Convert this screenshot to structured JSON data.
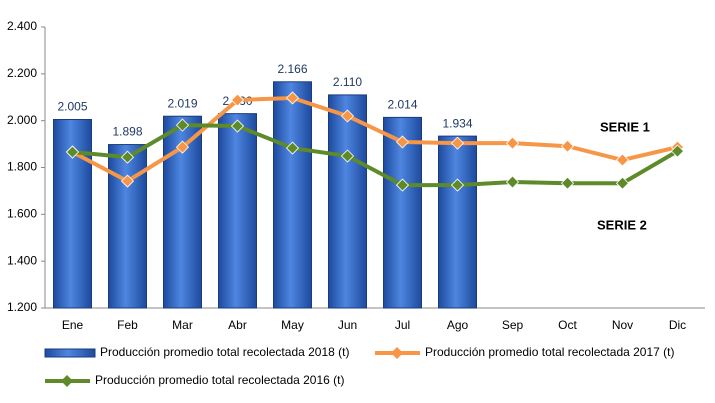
{
  "chart_data": {
    "type": "bar",
    "categories": [
      "Ene",
      "Feb",
      "Mar",
      "Abr",
      "May",
      "Jun",
      "Jul",
      "Ago",
      "Sep",
      "Oct",
      "Nov",
      "Dic"
    ],
    "series": [
      {
        "name": "Producción promedio total recolectada 2018 (t)",
        "type": "bar",
        "color": "#2f64c8",
        "values": [
          2005,
          1898,
          2019,
          2030,
          2166,
          2110,
          2014,
          1934,
          null,
          null,
          null,
          null
        ],
        "value_labels": [
          "2.005",
          "1.898",
          "2.019",
          "2.030",
          "2.166",
          "2.110",
          "2.014",
          "1.934",
          null,
          null,
          null,
          null
        ]
      },
      {
        "name": "Producción promedio total recolectada 2017 (t)",
        "type": "line",
        "color": "#f79646",
        "values": [
          1866,
          1742,
          1887,
          2088,
          2097,
          2020,
          1909,
          1904,
          1904,
          1891,
          1832,
          1887
        ]
      },
      {
        "name": "Producción promedio total recolectada 2016 (t)",
        "type": "line",
        "color": "#5e8a2a",
        "values": [
          1866,
          1844,
          1981,
          1977,
          1883,
          1849,
          1725,
          1725,
          1738,
          1733,
          1733,
          1870
        ]
      }
    ],
    "annotations": [
      "SERIE 1",
      "SERIE 2"
    ],
    "ylim": [
      1200,
      2400
    ],
    "yticks": [
      {
        "value": 1200,
        "label": "1.200"
      },
      {
        "value": 1400,
        "label": "1.400"
      },
      {
        "value": 1600,
        "label": "1.600"
      },
      {
        "value": 1800,
        "label": "1.800"
      },
      {
        "value": 2000,
        "label": "2.000"
      },
      {
        "value": 2200,
        "label": "2.200"
      },
      {
        "value": 2400,
        "label": "2.400"
      }
    ],
    "grid": false
  }
}
